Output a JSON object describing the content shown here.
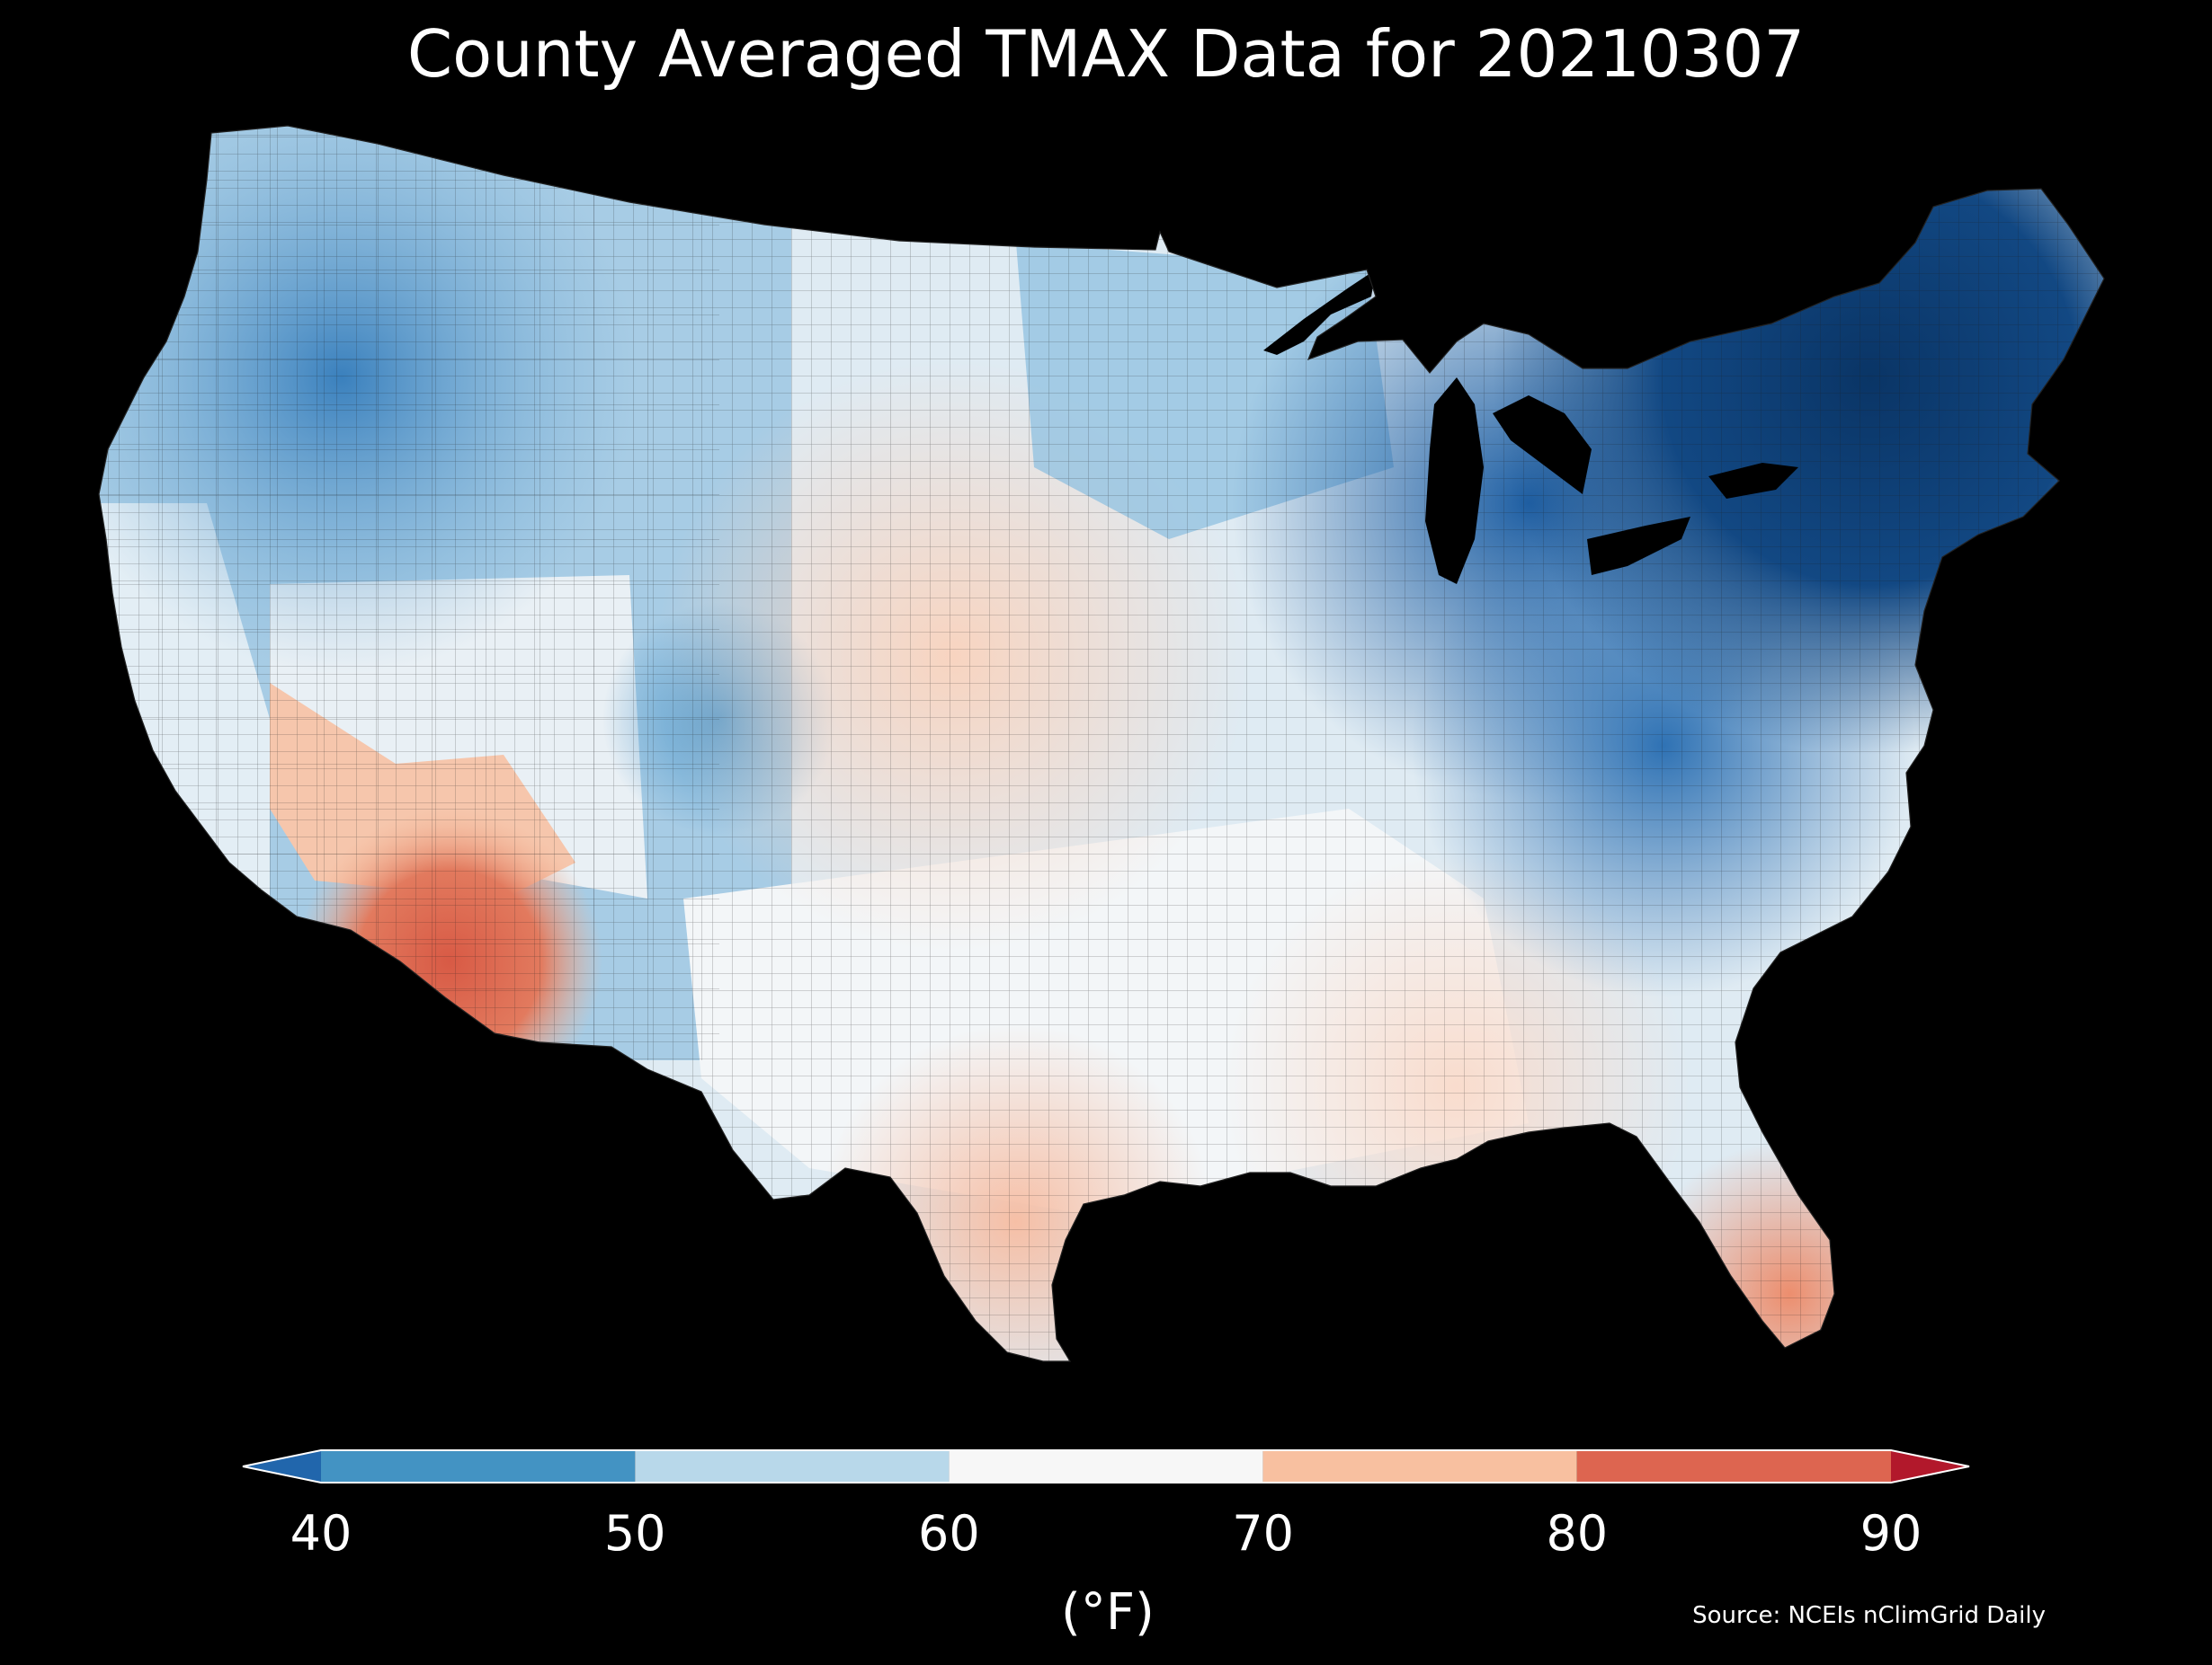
{
  "title": "County Averaged TMAX Data for 20210307",
  "colorbar": {
    "unit_label": "(°F)",
    "ticks": [
      "40",
      "50",
      "60",
      "70",
      "80",
      "90"
    ],
    "extend": "both",
    "colors": {
      "under": "#2166ac",
      "bins": [
        "#4393c3",
        "#b8d8ea",
        "#f7f7f7",
        "#f8c0a0",
        "#dd6550"
      ],
      "over": "#b2182b"
    },
    "bins": [
      {
        "range": [
          40,
          50
        ],
        "color": "#4393c3"
      },
      {
        "range": [
          50,
          60
        ],
        "color": "#b8d8ea"
      },
      {
        "range": [
          60,
          70
        ],
        "color": "#f7f7f7"
      },
      {
        "range": [
          70,
          80
        ],
        "color": "#f8c0a0"
      },
      {
        "range": [
          80,
          90
        ],
        "color": "#dd6550"
      }
    ]
  },
  "source": "Source: NCEIs nClimGrid Daily",
  "map_colors": {
    "background": "#000000",
    "northeast": "#0e3f77",
    "new_england": "#0a3566",
    "great_lakes": "#1f5fa3",
    "pacific_northwest": "#4390c6",
    "northern_rockies": "#3e86c0",
    "plains_warm": "#f8d8c8",
    "desert_southwest": "#dd6550",
    "gulf_coast": "#fbe3d6",
    "florida_south": "#ef9d7f",
    "midwest": "#d3e6f1",
    "appalachian": "#3d7fbd"
  }
}
